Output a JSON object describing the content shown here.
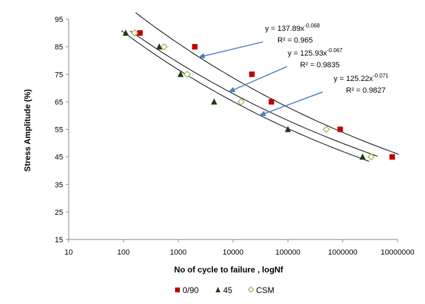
{
  "chart_data": {
    "type": "scatter",
    "title": "",
    "xlabel": "No of cycle to failure , logNf",
    "ylabel": "Stress Amplitude (%)",
    "x_scale": "log",
    "xlim": [
      10,
      10000000
    ],
    "ylim": [
      15,
      95
    ],
    "x_ticks": [
      "10",
      "100",
      "1000",
      "10000",
      "100000",
      "1000000",
      "10000000"
    ],
    "y_ticks": [
      "15",
      "25",
      "35",
      "45",
      "55",
      "65",
      "75",
      "85",
      "95"
    ],
    "grid": false,
    "legend_position": "bottom",
    "series": [
      {
        "name": "0/90",
        "marker": "square",
        "color": "#c00000",
        "points": [
          {
            "x": 200,
            "y": 90
          },
          {
            "x": 2000,
            "y": 85
          },
          {
            "x": 22000,
            "y": 75
          },
          {
            "x": 50000,
            "y": 65
          },
          {
            "x": 900000,
            "y": 55
          },
          {
            "x": 8000000,
            "y": 45
          }
        ]
      },
      {
        "name": "45",
        "marker": "triangle",
        "color": "#1a3d0f",
        "points": [
          {
            "x": 110,
            "y": 90
          },
          {
            "x": 450,
            "y": 85
          },
          {
            "x": 1100,
            "y": 75
          },
          {
            "x": 4500,
            "y": 65
          },
          {
            "x": 100000,
            "y": 55
          },
          {
            "x": 2300000,
            "y": 45
          }
        ]
      },
      {
        "name": "CSM",
        "marker": "diamond",
        "color": "#9bbb59",
        "points": [
          {
            "x": 160,
            "y": 90
          },
          {
            "x": 550,
            "y": 85
          },
          {
            "x": 1450,
            "y": 75
          },
          {
            "x": 14000,
            "y": 65
          },
          {
            "x": 500000,
            "y": 55
          },
          {
            "x": 3300000,
            "y": 45
          }
        ]
      }
    ],
    "trendlines": [
      {
        "series": "0/90",
        "a": 137.89,
        "b": -0.068,
        "x_range": [
          200,
          8000000
        ]
      },
      {
        "series": "CSM",
        "a": 125.93,
        "b": -0.067,
        "x_range": [
          160,
          3300000
        ]
      },
      {
        "series": "45",
        "a": 125.22,
        "b": -0.071,
        "x_range": [
          110,
          2300000
        ]
      }
    ],
    "annotations": [
      {
        "equation_base": "y = 137.89x",
        "exponent": "-0.068",
        "r2": "R² = 0.965"
      },
      {
        "equation_base": "y = 125.93x",
        "exponent": "-0.067",
        "r2": "R² = 0.9835"
      },
      {
        "equation_base": "y = 125.22x",
        "exponent": "-0.071",
        "r2": "R² = 0.9827"
      }
    ],
    "arrow_color": "#4f81bd"
  }
}
